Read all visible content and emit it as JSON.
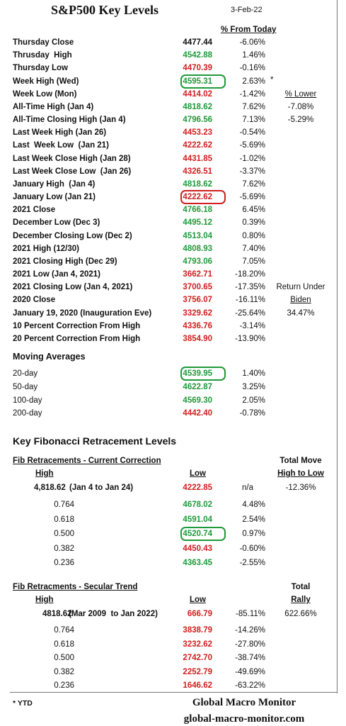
{
  "header": {
    "title": "S&P500 Key Levels",
    "date": "3-Feb-22",
    "column_header": "% From Today"
  },
  "key_levels": [
    {
      "label": "Thursday Close",
      "value": "4477.44",
      "change": "-6.06%",
      "color": "black"
    },
    {
      "label": "Thrusday  High",
      "value": "4542.88",
      "change": "1.46%",
      "color": "green"
    },
    {
      "label": "Thursday Low",
      "value": "4470.39",
      "change": "-0.16%",
      "color": "red"
    },
    {
      "label": "Week High (Wed)",
      "value": "4595.31",
      "change": "2.63%",
      "color": "green",
      "circled": true,
      "note": "*"
    },
    {
      "label": "Week Low (Mon)",
      "value": "4414.02",
      "change": "-1.42%",
      "color": "red",
      "side": "% Lower",
      "side_underline": true
    },
    {
      "label": "All-Time High (Jan 4)",
      "value": "4818.62",
      "change": "7.62%",
      "color": "green",
      "side": "-7.08%"
    },
    {
      "label": "All-Time Closing High (Jan 4)",
      "value": "4796.56",
      "change": "7.13%",
      "color": "green",
      "side": "-5.29%"
    },
    {
      "label": "Last Week High (Jan 26)",
      "value": "4453.23",
      "change": "-0.54%",
      "color": "red"
    },
    {
      "label": "Last  Week Low  (Jan 21)",
      "value": "4222.62",
      "change": "-5.69%",
      "color": "red"
    },
    {
      "label": "Last Week Close High (Jan 28)",
      "value": "4431.85",
      "change": "-1.02%",
      "color": "red"
    },
    {
      "label": "Last Week Close Low  (Jan 26)",
      "value": "4326.51",
      "change": "-3.37%",
      "color": "red"
    },
    {
      "label": "January High  (Jan 4)",
      "value": "4818.62",
      "change": "7.62%",
      "color": "green"
    },
    {
      "label": "January Low (Jan 21)",
      "value": "4222.62",
      "change": "-5.69%",
      "color": "red",
      "circled": true
    },
    {
      "label": "2021 Close",
      "value": "4766.18",
      "change": "6.45%",
      "color": "green"
    },
    {
      "label": "December Low (Dec 3)",
      "value": "4495.12",
      "change": "0.39%",
      "color": "green"
    },
    {
      "label": "December Closing Low (Dec 2)",
      "value": "4513.04",
      "change": "0.80%",
      "color": "green"
    },
    {
      "label": "2021 High (12/30)",
      "value": "4808.93",
      "change": "7.40%",
      "color": "green"
    },
    {
      "label": "2021 Closing High (Dec 29)",
      "value": "4793.06",
      "change": "7.05%",
      "color": "green"
    },
    {
      "label": "2021 Low (Jan 4, 2021)",
      "value": "3662.71",
      "change": "-18.20%",
      "color": "red"
    },
    {
      "label": "2021 Closing Low (Jan 4, 2021)",
      "value": "3700.65",
      "change": "-17.35%",
      "color": "red",
      "side": "Return Under"
    },
    {
      "label": "2020 Close",
      "value": "3756.07",
      "change": "-16.11%",
      "color": "red",
      "side": "Biden",
      "side_underline": true
    },
    {
      "label": "January 19, 2020 (Inauguration Eve)",
      "value": "3329.62",
      "change": "-25.64%",
      "color": "red",
      "side": "34.47%"
    },
    {
      "label": "10 Percent Correction From High",
      "value": "4336.76",
      "change": "-3.14%",
      "color": "red"
    },
    {
      "label": "20 Percent Correction From High",
      "value": "3854.90",
      "change": "-13.90%",
      "color": "red"
    }
  ],
  "moving_averages": {
    "title": "Moving Averages",
    "rows": [
      {
        "label": "20-day",
        "value": "4539.95",
        "change": "1.40%",
        "color": "green",
        "circled": true
      },
      {
        "label": "50-day",
        "value": "4622.87",
        "change": "3.25%",
        "color": "green"
      },
      {
        "label": "100-day",
        "value": "4569.30",
        "change": "2.05%",
        "color": "green"
      },
      {
        "label": "200-day",
        "value": "4442.40",
        "change": "-0.78%",
        "color": "red"
      }
    ]
  },
  "fibonacci": {
    "title": "Key Fibonacci Retracement Levels",
    "sections": [
      {
        "title": "Fib Retracements - Current Correction",
        "total_header": "Total Move",
        "high_header": "High",
        "low_header": "Low",
        "total_subheader": "High to Low",
        "base": {
          "high": "4,818.62",
          "period": "(Jan 4 to Jan 24)",
          "low": "4222.85",
          "low_color": "red",
          "change": "n/a",
          "total": "-12.36%"
        },
        "rows": [
          {
            "ratio": "0.764",
            "value": "4678.02",
            "change": "4.48%",
            "color": "green"
          },
          {
            "ratio": "0.618",
            "value": "4591.04",
            "change": "2.54%",
            "color": "green"
          },
          {
            "ratio": "0.500",
            "value": "4520.74",
            "change": "0.97%",
            "color": "green",
            "circled": true
          },
          {
            "ratio": "0.382",
            "value": "4450.43",
            "change": "-0.60%",
            "color": "red"
          },
          {
            "ratio": "0.236",
            "value": "4363.45",
            "change": "-2.55%",
            "color": "green"
          }
        ]
      },
      {
        "title": "Fib Retracments - Secular Trend",
        "total_header": "Total",
        "high_header": "High",
        "low_header": "Low",
        "total_subheader": "Rally",
        "base": {
          "high": "4818.62",
          "period": "(Mar 2009  to Jan 2022)",
          "low": "666.79",
          "low_color": "red",
          "change": "-85.11%",
          "total": "622.66%"
        },
        "rows": [
          {
            "ratio": "0.764",
            "value": "3838.79",
            "change": "-14.26%",
            "color": "red"
          },
          {
            "ratio": "0.618",
            "value": "3232.62",
            "change": "-27.80%",
            "color": "red"
          },
          {
            "ratio": "0.500",
            "value": "2742.70",
            "change": "-38.74%",
            "color": "red"
          },
          {
            "ratio": "0.382",
            "value": "2252.79",
            "change": "-49.69%",
            "color": "red"
          },
          {
            "ratio": "0.236",
            "value": "1646.62",
            "change": "-63.22%",
            "color": "red"
          }
        ]
      }
    ]
  },
  "footer": {
    "note": "* YTD",
    "brand": "Global Macro Monitor",
    "url": "global-macro-monitor.com"
  }
}
